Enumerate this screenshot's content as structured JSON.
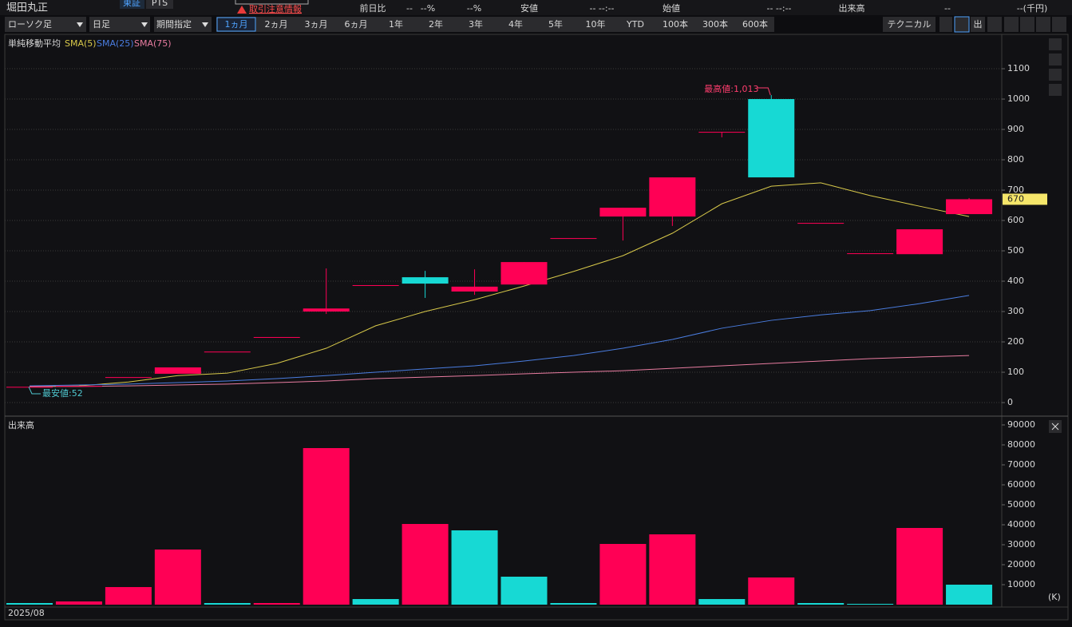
{
  "header": {
    "stock_name": "堀田丸正",
    "market": "東証",
    "pts": "PTS",
    "alert": "取引注意情報",
    "quote_items": [
      "前日比",
      "--",
      "--%",
      "--%",
      "安値",
      "-- --:--",
      "始値",
      "-- --:--",
      "出来高",
      "--",
      "--(千円)"
    ]
  },
  "toolbar": {
    "chart_style": "ローソク足",
    "interval": "日足",
    "range_mode": "期間指定",
    "periods": [
      "1ヵ月",
      "2ヵ月",
      "3ヵ月",
      "6ヵ月",
      "1年",
      "2年",
      "3年",
      "4年",
      "5年",
      "10年",
      "YTD",
      "100本",
      "300本",
      "600本"
    ],
    "technical": "テクニカル",
    "volume_icon": "出"
  },
  "chart_data": [
    {
      "type": "candlestick",
      "title": "単純移動平均",
      "open": [
        52,
        55,
        84,
        95,
        168,
        216,
        300,
        387,
        413,
        366,
        389,
        542,
        613,
        613,
        892,
        1000,
        592,
        492,
        489,
        621
      ],
      "high": [
        52,
        55,
        84,
        116,
        168,
        216,
        442,
        387,
        434,
        439,
        463,
        542,
        642,
        742,
        892,
        1013,
        592,
        492,
        571,
        674
      ],
      "low": [
        52,
        55,
        84,
        95,
        168,
        216,
        292,
        387,
        345,
        355,
        389,
        542,
        534,
        582,
        874,
        742,
        592,
        492,
        489,
        621
      ],
      "close": [
        52,
        55,
        84,
        116,
        168,
        216,
        310,
        387,
        392,
        382,
        463,
        542,
        642,
        742,
        892,
        742,
        592,
        492,
        571,
        670
      ],
      "up_color": "#ff0055",
      "down_color": "#17d9d4",
      "series": [
        {
          "name": "SMA(5)",
          "color": "#d8c94a",
          "values": [
            52,
            55,
            68,
            89,
            97,
            129,
            179,
            253,
            300,
            339,
            384,
            432,
            484,
            558,
            655,
            713,
            724,
            682,
            647,
            613
          ]
        },
        {
          "name": "SMA(25)",
          "color": "#4a7de0",
          "values": [
            55,
            58,
            61,
            66,
            71,
            79,
            89,
            100,
            111,
            121,
            137,
            155,
            179,
            208,
            245,
            271,
            289,
            303,
            326,
            353
          ]
        },
        {
          "name": "SMA(75)",
          "color": "#e87ca0",
          "values": [
            53,
            53,
            55,
            58,
            61,
            66,
            71,
            79,
            84,
            89,
            95,
            100,
            105,
            113,
            121,
            129,
            137,
            145,
            150,
            155
          ]
        }
      ],
      "ylim": [
        -42,
        1208
      ],
      "yticks": [
        0,
        100,
        200,
        300,
        400,
        500,
        600,
        700,
        800,
        900,
        1000,
        1100
      ],
      "grid": true,
      "high_label": "最高値:1,013",
      "low_label": "最安値:52",
      "last_price": 670
    },
    {
      "type": "bar",
      "title": "出来高",
      "categories": [
        "2025/08",
        null,
        null,
        null,
        null,
        null,
        null,
        null,
        null,
        null,
        null,
        null,
        null,
        null,
        null,
        null,
        null,
        null,
        null,
        null
      ],
      "values": [
        800,
        1600,
        8800,
        27600,
        800,
        800,
        78400,
        2800,
        40400,
        37200,
        14000,
        800,
        30400,
        35200,
        2800,
        13600,
        800,
        400,
        38400,
        10000
      ],
      "colors": [
        "#17d9d4",
        "#ff0055",
        "#ff0055",
        "#ff0055",
        "#17d9d4",
        "#ff0055",
        "#ff0055",
        "#17d9d4",
        "#ff0055",
        "#17d9d4",
        "#17d9d4",
        "#17d9d4",
        "#ff0055",
        "#ff0055",
        "#17d9d4",
        "#ff0055",
        "#17d9d4",
        "#17d9d4",
        "#ff0055",
        "#17d9d4"
      ],
      "ylim": [
        0,
        94000
      ],
      "yticks": [
        10000,
        20000,
        30000,
        40000,
        50000,
        60000,
        70000,
        80000,
        90000
      ],
      "grid": false,
      "unit_label": "(K)"
    }
  ]
}
